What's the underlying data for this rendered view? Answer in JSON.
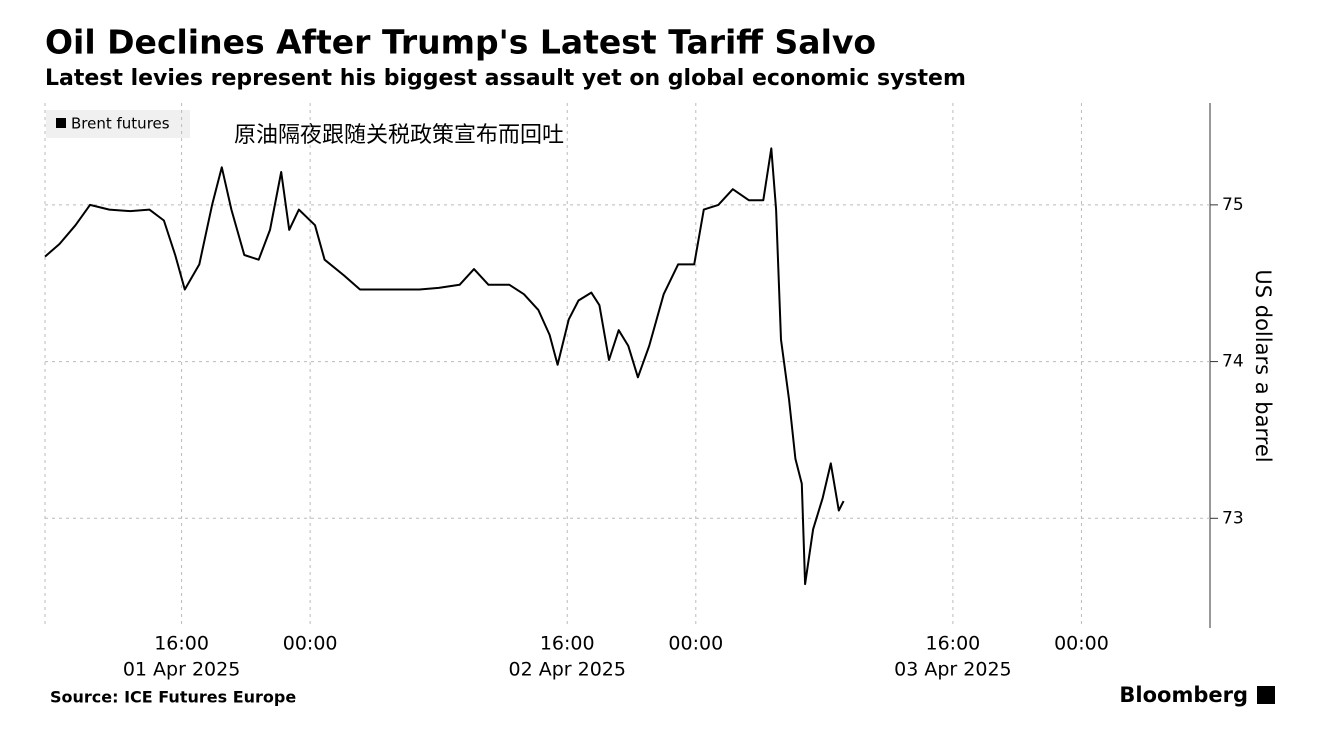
{
  "chart_data": {
    "type": "line",
    "title": "Oil Declines After Trump's Latest Tariff Salvo",
    "subtitle": "Latest levies represent his biggest assault yet on global economic system",
    "annotation": "原油隔夜跟随关税政策宣布而回吐",
    "y_label": "US dollars a barrel",
    "source": "Source: ICE Futures Europe",
    "brand": "Bloomberg",
    "x": [
      7.5,
      8.4,
      9.4,
      10.3,
      11.5,
      12.8,
      14.0,
      14.9,
      15.6,
      16.2,
      17.1,
      17.9,
      18.5,
      19.1,
      19.9,
      20.8,
      21.5,
      22.2,
      22.7,
      23.3,
      24.3,
      24.9,
      26.1,
      27.1,
      28.3,
      29.5,
      30.8,
      32.0,
      33.3,
      34.2,
      35.1,
      36.4,
      37.3,
      38.2,
      38.9,
      39.4,
      40.1,
      40.7,
      41.5,
      42.0,
      42.6,
      43.2,
      43.8,
      44.4,
      45.1,
      46.0,
      46.9,
      47.9,
      48.5,
      49.4,
      50.3,
      51.3,
      52.2,
      52.7,
      53.0,
      53.3,
      53.8,
      54.2,
      54.6,
      54.8,
      55.3,
      55.9,
      56.4,
      56.9,
      57.2
    ],
    "series": [
      {
        "name": "Brent futures",
        "color": "#000000",
        "values": [
          74.67,
          74.75,
          74.87,
          75.0,
          74.97,
          74.96,
          74.97,
          74.9,
          74.68,
          74.46,
          74.62,
          75.0,
          75.24,
          74.97,
          74.68,
          74.65,
          74.84,
          75.21,
          74.84,
          74.97,
          74.87,
          74.65,
          74.55,
          74.46,
          74.46,
          74.46,
          74.46,
          74.47,
          74.49,
          74.59,
          74.49,
          74.49,
          74.43,
          74.33,
          74.17,
          73.98,
          74.27,
          74.39,
          74.44,
          74.36,
          74.01,
          74.2,
          74.1,
          73.9,
          74.1,
          74.43,
          74.62,
          74.62,
          74.97,
          75.0,
          75.1,
          75.03,
          75.03,
          75.36,
          74.97,
          74.14,
          73.76,
          73.38,
          73.22,
          72.58,
          72.93,
          73.13,
          73.35,
          73.05,
          73.11
        ]
      }
    ],
    "xlim": [
      7.5,
      80
    ],
    "xticks": [
      {
        "value": 16,
        "label": "16:00"
      },
      {
        "value": 24,
        "label": "00:00"
      },
      {
        "value": 40,
        "label": "16:00"
      },
      {
        "value": 48,
        "label": "00:00"
      },
      {
        "value": 64,
        "label": "16:00"
      },
      {
        "value": 72,
        "label": "00:00"
      }
    ],
    "x_date_labels": [
      {
        "value": 16,
        "label": "01 Apr 2025"
      },
      {
        "value": 40,
        "label": "02 Apr 2025"
      },
      {
        "value": 64,
        "label": "03 Apr 2025"
      }
    ],
    "ylim": [
      72.3,
      75.65
    ],
    "yticks": [
      73,
      74,
      75
    ],
    "grid": true
  }
}
